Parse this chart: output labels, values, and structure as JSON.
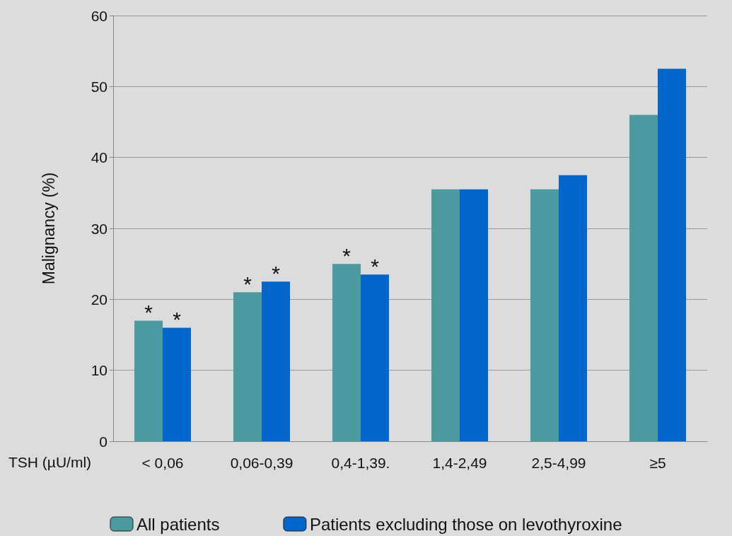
{
  "chart_data": {
    "type": "bar",
    "ylabel": "Malignancy (%)",
    "xlabel": "TSH (µU/ml)",
    "categories": [
      "< 0,06",
      "0,06-0,39",
      "0,4-1,39.",
      "1,4-2,49",
      "2,5-4,99",
      "≥5"
    ],
    "series": [
      {
        "name": "All patients",
        "color": "#4a9a9f",
        "values": [
          17,
          21,
          25,
          35.5,
          35.5,
          46
        ]
      },
      {
        "name": "Patients excluding those on levothyroxine",
        "color": "#0066cc",
        "values": [
          16,
          22.5,
          23.5,
          35.5,
          37.5,
          52.5
        ]
      }
    ],
    "ylim": [
      0,
      60
    ],
    "yticks": [
      0,
      10,
      20,
      30,
      40,
      50,
      60
    ],
    "grid": "y",
    "legend": "bottom",
    "annotations": [
      {
        "text": "*",
        "x": "< 0,06",
        "y": 17
      },
      {
        "text": "*",
        "x": "< 0,06",
        "y": 16
      },
      {
        "text": "*",
        "x": "0,06-0,39",
        "y": 21
      },
      {
        "text": "*",
        "x": "0,06-0,39",
        "y": 22.5
      },
      {
        "text": "*",
        "x": "0,4-1,39.",
        "y": 25
      },
      {
        "text": "*",
        "x": "0,4-1,39.",
        "y": 23.5
      }
    ]
  }
}
